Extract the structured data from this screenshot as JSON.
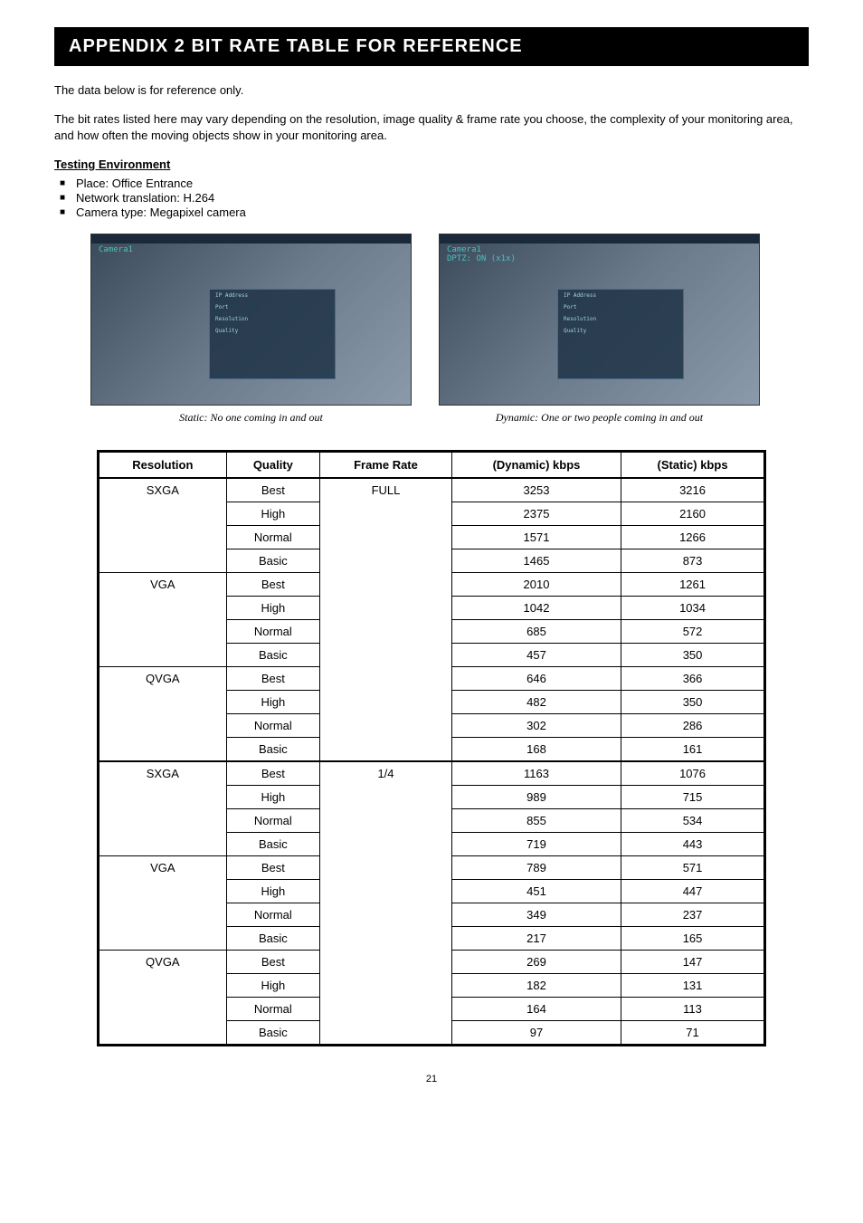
{
  "header": {
    "title": "APPENDIX 2 BIT RATE TABLE FOR REFERENCE"
  },
  "intro": {
    "line1": "The data below is for reference only.",
    "line2": "The bit rates listed here may vary depending on the resolution, image quality & frame rate you choose, the complexity of your monitoring area, and how often the moving objects show in your monitoring area."
  },
  "env": {
    "heading": "Testing Environment",
    "items": [
      "Place: Office Entrance",
      "Network translation: H.264",
      "Camera type: Megapixel camera"
    ]
  },
  "images": {
    "left": {
      "camera_label": "Camera1",
      "caption": "Static: No one coming in and out"
    },
    "right": {
      "camera_label": "Camera1\nDPTZ: ON (x1x)",
      "caption": "Dynamic: One or two people coming in and out"
    }
  },
  "table": {
    "columns": [
      "Resolution",
      "Quality",
      "Frame Rate",
      "(Dynamic) kbps",
      "(Static) kbps"
    ],
    "rows": [
      {
        "res": "SXGA",
        "quality": "Best",
        "rate": "FULL",
        "dyn": "3253",
        "stat": "3216",
        "res_rowspan": 4,
        "rate_rowspan": 12,
        "section_start": true
      },
      {
        "res": "",
        "quality": "High",
        "rate": "",
        "dyn": "2375",
        "stat": "2160"
      },
      {
        "res": "",
        "quality": "Normal",
        "rate": "",
        "dyn": "1571",
        "stat": "1266"
      },
      {
        "res": "",
        "quality": "Basic",
        "rate": "",
        "dyn": "1465",
        "stat": "873"
      },
      {
        "res": "VGA",
        "quality": "Best",
        "rate": "",
        "dyn": "2010",
        "stat": "1261",
        "res_rowspan": 4
      },
      {
        "res": "",
        "quality": "High",
        "rate": "",
        "dyn": "1042",
        "stat": "1034"
      },
      {
        "res": "",
        "quality": "Normal",
        "rate": "",
        "dyn": "685",
        "stat": "572"
      },
      {
        "res": "",
        "quality": "Basic",
        "rate": "",
        "dyn": "457",
        "stat": "350"
      },
      {
        "res": "QVGA",
        "quality": "Best",
        "rate": "",
        "dyn": "646",
        "stat": "366",
        "res_rowspan": 4
      },
      {
        "res": "",
        "quality": "High",
        "rate": "",
        "dyn": "482",
        "stat": "350"
      },
      {
        "res": "",
        "quality": "Normal",
        "rate": "",
        "dyn": "302",
        "stat": "286"
      },
      {
        "res": "",
        "quality": "Basic",
        "rate": "",
        "dyn": "168",
        "stat": "161"
      },
      {
        "res": "SXGA",
        "quality": "Best",
        "rate": "1/4",
        "dyn": "1163",
        "stat": "1076",
        "res_rowspan": 4,
        "rate_rowspan": 12,
        "section_start": true
      },
      {
        "res": "",
        "quality": "High",
        "rate": "",
        "dyn": "989",
        "stat": "715"
      },
      {
        "res": "",
        "quality": "Normal",
        "rate": "",
        "dyn": "855",
        "stat": "534"
      },
      {
        "res": "",
        "quality": "Basic",
        "rate": "",
        "dyn": "719",
        "stat": "443"
      },
      {
        "res": "VGA",
        "quality": "Best",
        "rate": "",
        "dyn": "789",
        "stat": "571",
        "res_rowspan": 4
      },
      {
        "res": "",
        "quality": "High",
        "rate": "",
        "dyn": "451",
        "stat": "447"
      },
      {
        "res": "",
        "quality": "Normal",
        "rate": "",
        "dyn": "349",
        "stat": "237"
      },
      {
        "res": "",
        "quality": "Basic",
        "rate": "",
        "dyn": "217",
        "stat": "165"
      },
      {
        "res": "QVGA",
        "quality": "Best",
        "rate": "",
        "dyn": "269",
        "stat": "147",
        "res_rowspan": 4
      },
      {
        "res": "",
        "quality": "High",
        "rate": "",
        "dyn": "182",
        "stat": "131"
      },
      {
        "res": "",
        "quality": "Normal",
        "rate": "",
        "dyn": "164",
        "stat": "113"
      },
      {
        "res": "",
        "quality": "Basic",
        "rate": "",
        "dyn": "97",
        "stat": "71"
      }
    ]
  },
  "page_number": "21"
}
